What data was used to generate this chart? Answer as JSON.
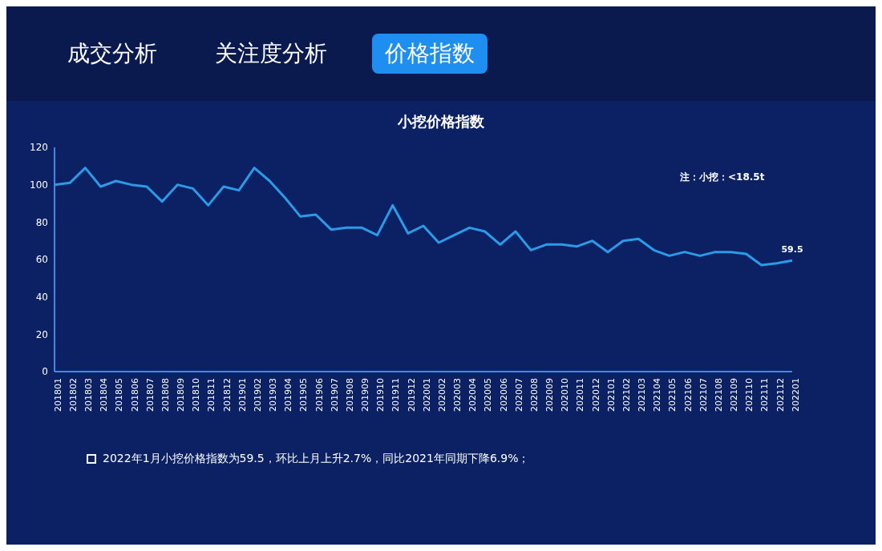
{
  "chart_data": {
    "type": "line",
    "title": "小挖价格指数",
    "categories": [
      "201801",
      "201802",
      "201803",
      "201804",
      "201805",
      "201806",
      "201807",
      "201808",
      "201809",
      "201810",
      "201811",
      "201812",
      "201901",
      "201902",
      "201903",
      "201904",
      "201905",
      "201906",
      "201907",
      "201908",
      "201909",
      "201910",
      "201911",
      "201912",
      "202001",
      "202002",
      "202003",
      "202004",
      "202005",
      "202006",
      "202007",
      "202008",
      "202009",
      "202010",
      "202011",
      "202012",
      "202101",
      "202102",
      "202103",
      "202104",
      "202105",
      "202106",
      "202107",
      "202108",
      "202109",
      "202110",
      "202111",
      "202112",
      "202201"
    ],
    "series": [
      {
        "color": "#2b9be8",
        "values": [
          100,
          101,
          109,
          99,
          102,
          100,
          99,
          91,
          100,
          98,
          89,
          99,
          97,
          109,
          102,
          93,
          83,
          84,
          76,
          77,
          77,
          73,
          89,
          74,
          78,
          69,
          73,
          77,
          75,
          68,
          75,
          65,
          68,
          68,
          67,
          70,
          64,
          70,
          71,
          65,
          62,
          64,
          62,
          64,
          64,
          63,
          57,
          58,
          59.5
        ],
        "value_labels": [
          null,
          null,
          null,
          null,
          null,
          null,
          null,
          null,
          null,
          null,
          null,
          null,
          null,
          null,
          null,
          null,
          null,
          null,
          null,
          null,
          null,
          null,
          null,
          null,
          null,
          null,
          null,
          null,
          null,
          null,
          null,
          null,
          null,
          null,
          null,
          null,
          null,
          null,
          null,
          null,
          null,
          null,
          null,
          null,
          null,
          null,
          null,
          null,
          "59.5"
        ]
      }
    ],
    "ylim": [
      0,
      120
    ],
    "yticks": [
      0,
      20,
      40,
      60,
      80,
      100,
      120
    ],
    "grid": false,
    "marker": "none",
    "line_style": "solid",
    "annotations": [
      "成交分析",
      "关注度分析",
      "价格指数",
      "注：小挖：<18.5t",
      "2022年1月小挖价格指数为59.5，环比上月上升2.7%，同比2021年同期下降6.9%；"
    ]
  }
}
